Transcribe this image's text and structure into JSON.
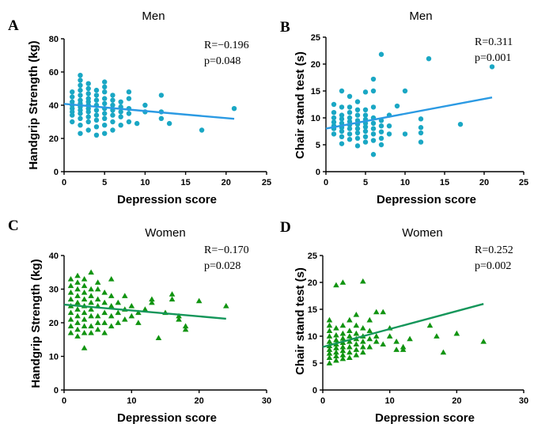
{
  "chart_data": [
    {
      "panel": "A",
      "type": "scatter",
      "title": "Men",
      "xlabel": "Depression score",
      "ylabel": "Handgrip Strength (kg)",
      "xlim": [
        0,
        25
      ],
      "ylim": [
        0,
        80
      ],
      "xticks": [
        0,
        5,
        10,
        15,
        20,
        25
      ],
      "yticks": [
        0,
        20,
        40,
        60,
        80
      ],
      "stat_r": "R=−0.196",
      "stat_p": "p=0.048",
      "marker": "circle",
      "color": "#1aa7c4",
      "line_color": "#2b9ae3",
      "trend": [
        [
          0,
          40.8
        ],
        [
          21,
          31.8
        ]
      ],
      "points": [
        [
          1,
          30
        ],
        [
          1,
          34
        ],
        [
          1,
          36
        ],
        [
          1,
          38
        ],
        [
          1,
          40
        ],
        [
          1,
          42
        ],
        [
          1,
          45
        ],
        [
          1,
          48
        ],
        [
          2,
          23
        ],
        [
          2,
          28
        ],
        [
          2,
          32
        ],
        [
          2,
          35
        ],
        [
          2,
          37
        ],
        [
          2,
          39
        ],
        [
          2,
          41
        ],
        [
          2,
          43
        ],
        [
          2,
          46
        ],
        [
          2,
          49
        ],
        [
          2,
          52
        ],
        [
          2,
          55
        ],
        [
          2,
          58
        ],
        [
          3,
          25
        ],
        [
          3,
          30
        ],
        [
          3,
          33
        ],
        [
          3,
          36
        ],
        [
          3,
          38
        ],
        [
          3,
          40
        ],
        [
          3,
          42
        ],
        [
          3,
          44
        ],
        [
          3,
          47
        ],
        [
          3,
          50
        ],
        [
          3,
          53
        ],
        [
          4,
          22
        ],
        [
          4,
          27
        ],
        [
          4,
          31
        ],
        [
          4,
          34
        ],
        [
          4,
          37
        ],
        [
          4,
          40
        ],
        [
          4,
          43
        ],
        [
          4,
          46
        ],
        [
          4,
          49
        ],
        [
          5,
          23
        ],
        [
          5,
          28
        ],
        [
          5,
          32
        ],
        [
          5,
          35
        ],
        [
          5,
          38
        ],
        [
          5,
          41
        ],
        [
          5,
          44
        ],
        [
          5,
          48
        ],
        [
          5,
          51
        ],
        [
          5,
          54
        ],
        [
          6,
          25
        ],
        [
          6,
          30
        ],
        [
          6,
          34
        ],
        [
          6,
          37
        ],
        [
          6,
          40
        ],
        [
          6,
          43
        ],
        [
          6,
          46
        ],
        [
          7,
          28
        ],
        [
          7,
          33
        ],
        [
          7,
          36
        ],
        [
          7,
          39
        ],
        [
          7,
          42
        ],
        [
          8,
          30
        ],
        [
          8,
          35
        ],
        [
          8,
          38
        ],
        [
          8,
          44
        ],
        [
          8,
          48
        ],
        [
          9,
          29
        ],
        [
          10,
          36
        ],
        [
          10,
          40
        ],
        [
          12,
          32
        ],
        [
          12,
          36
        ],
        [
          12,
          46
        ],
        [
          13,
          29
        ],
        [
          17,
          25
        ],
        [
          21,
          38
        ]
      ]
    },
    {
      "panel": "B",
      "type": "scatter",
      "title": "Men",
      "xlabel": "Depression score",
      "ylabel": "Chair stand test (s)",
      "xlim": [
        0,
        25
      ],
      "ylim": [
        0,
        25
      ],
      "xticks": [
        0,
        5,
        10,
        15,
        20,
        25
      ],
      "yticks": [
        0,
        5,
        10,
        15,
        20,
        25
      ],
      "stat_r": "R=0.311",
      "stat_p": "p=0.001",
      "marker": "circle",
      "color": "#1aa7c4",
      "line_color": "#2b9ae3",
      "trend": [
        [
          0,
          8.0
        ],
        [
          21,
          13.8
        ]
      ],
      "points": [
        [
          1,
          7
        ],
        [
          1,
          8
        ],
        [
          1,
          8.5
        ],
        [
          1,
          9.2
        ],
        [
          1,
          10
        ],
        [
          1,
          11
        ],
        [
          1,
          12.5
        ],
        [
          2,
          5.2
        ],
        [
          2,
          6.5
        ],
        [
          2,
          7.5
        ],
        [
          2,
          8.2
        ],
        [
          2,
          9
        ],
        [
          2,
          9.8
        ],
        [
          2,
          10.5
        ],
        [
          2,
          12
        ],
        [
          2,
          15
        ],
        [
          3,
          6
        ],
        [
          3,
          7
        ],
        [
          3,
          8
        ],
        [
          3,
          8.7
        ],
        [
          3,
          9.3
        ],
        [
          3,
          10
        ],
        [
          3,
          11
        ],
        [
          3,
          12
        ],
        [
          3,
          14
        ],
        [
          4,
          4.8
        ],
        [
          4,
          6.2
        ],
        [
          4,
          7.2
        ],
        [
          4,
          8
        ],
        [
          4,
          8.8
        ],
        [
          4,
          9.5
        ],
        [
          4,
          10.5
        ],
        [
          4,
          11.5
        ],
        [
          4,
          13
        ],
        [
          5,
          5.5
        ],
        [
          5,
          6.5
        ],
        [
          5,
          7.5
        ],
        [
          5,
          8.3
        ],
        [
          5,
          9
        ],
        [
          5,
          9.7
        ],
        [
          5,
          10.5
        ],
        [
          5,
          11.5
        ],
        [
          5,
          14.8
        ],
        [
          6,
          3.2
        ],
        [
          6,
          5.8
        ],
        [
          6,
          7
        ],
        [
          6,
          8
        ],
        [
          6,
          9
        ],
        [
          6,
          10
        ],
        [
          6,
          12
        ],
        [
          6,
          15
        ],
        [
          6,
          17.2
        ],
        [
          7,
          5
        ],
        [
          7,
          6.2
        ],
        [
          7,
          7.4
        ],
        [
          7,
          8.5
        ],
        [
          7,
          9.5
        ],
        [
          7,
          21.8
        ],
        [
          8,
          7
        ],
        [
          8,
          8.5
        ],
        [
          8,
          10.5
        ],
        [
          9,
          12.2
        ],
        [
          10,
          7
        ],
        [
          10,
          15
        ],
        [
          12,
          5.5
        ],
        [
          12,
          7.2
        ],
        [
          12,
          8.2
        ],
        [
          12,
          9.8
        ],
        [
          13,
          21
        ],
        [
          17,
          8.8
        ],
        [
          21,
          19.5
        ]
      ]
    },
    {
      "panel": "C",
      "type": "scatter",
      "title": "Women",
      "xlabel": "Depression score",
      "ylabel": "Handgrip Strength (kg)",
      "xlim": [
        0,
        30
      ],
      "ylim": [
        0,
        40
      ],
      "xticks": [
        0,
        10,
        20,
        30
      ],
      "yticks": [
        0,
        10,
        20,
        30,
        40
      ],
      "stat_r": "R=−0.170",
      "stat_p": "p=0.028",
      "marker": "triangle",
      "color": "#119411",
      "line_color": "#14965a",
      "trend": [
        [
          0,
          25.4
        ],
        [
          24,
          21.2
        ]
      ],
      "points": [
        [
          1,
          17
        ],
        [
          1,
          19
        ],
        [
          1,
          21
        ],
        [
          1,
          23
        ],
        [
          1,
          25
        ],
        [
          1,
          27
        ],
        [
          1,
          29
        ],
        [
          1,
          31
        ],
        [
          1,
          33
        ],
        [
          2,
          16
        ],
        [
          2,
          18
        ],
        [
          2,
          20
        ],
        [
          2,
          22
        ],
        [
          2,
          24
        ],
        [
          2,
          26
        ],
        [
          2,
          28
        ],
        [
          2,
          30
        ],
        [
          2,
          32
        ],
        [
          2,
          34
        ],
        [
          3,
          12.5
        ],
        [
          3,
          17
        ],
        [
          3,
          19
        ],
        [
          3,
          21
        ],
        [
          3,
          23
        ],
        [
          3,
          25
        ],
        [
          3,
          27
        ],
        [
          3,
          29
        ],
        [
          3,
          31
        ],
        [
          3,
          33
        ],
        [
          4,
          17
        ],
        [
          4,
          19
        ],
        [
          4,
          22
        ],
        [
          4,
          24
        ],
        [
          4,
          26
        ],
        [
          4,
          28
        ],
        [
          4,
          30
        ],
        [
          4,
          35
        ],
        [
          5,
          18
        ],
        [
          5,
          20
        ],
        [
          5,
          22
        ],
        [
          5,
          25
        ],
        [
          5,
          27
        ],
        [
          5,
          30
        ],
        [
          5,
          32
        ],
        [
          6,
          17
        ],
        [
          6,
          20
        ],
        [
          6,
          23
        ],
        [
          6,
          26
        ],
        [
          6,
          29
        ],
        [
          7,
          19
        ],
        [
          7,
          22
        ],
        [
          7,
          25
        ],
        [
          7,
          28
        ],
        [
          7,
          33
        ],
        [
          8,
          20
        ],
        [
          8,
          23
        ],
        [
          8,
          26
        ],
        [
          9,
          21
        ],
        [
          9,
          24
        ],
        [
          9,
          28
        ],
        [
          10,
          22
        ],
        [
          10,
          25
        ],
        [
          11,
          20
        ],
        [
          11,
          23
        ],
        [
          12,
          24
        ],
        [
          13,
          26
        ],
        [
          13,
          27
        ],
        [
          14,
          15.5
        ],
        [
          15,
          23
        ],
        [
          16,
          27
        ],
        [
          16,
          28.5
        ],
        [
          17,
          21
        ],
        [
          17,
          22
        ],
        [
          18,
          18
        ],
        [
          18,
          19
        ],
        [
          20,
          26.5
        ],
        [
          24,
          25
        ]
      ]
    },
    {
      "panel": "D",
      "type": "scatter",
      "title": "Women",
      "xlabel": "Depression score",
      "ylabel": "Chair stand test (s)",
      "xlim": [
        0,
        30
      ],
      "ylim": [
        0,
        25
      ],
      "xticks": [
        0,
        10,
        20,
        30
      ],
      "yticks": [
        0,
        5,
        10,
        15,
        20,
        25
      ],
      "stat_r": "R=0.252",
      "stat_p": "p=0.002",
      "marker": "triangle",
      "color": "#119411",
      "line_color": "#14965a",
      "trend": [
        [
          0,
          8.0
        ],
        [
          24,
          16.0
        ]
      ],
      "points": [
        [
          1,
          5
        ],
        [
          1,
          6
        ],
        [
          1,
          6.8
        ],
        [
          1,
          7.5
        ],
        [
          1,
          8.2
        ],
        [
          1,
          9
        ],
        [
          1,
          10
        ],
        [
          1,
          11
        ],
        [
          1,
          12
        ],
        [
          1,
          13
        ],
        [
          2,
          5.5
        ],
        [
          2,
          6.3
        ],
        [
          2,
          7
        ],
        [
          2,
          7.8
        ],
        [
          2,
          8.5
        ],
        [
          2,
          9.3
        ],
        [
          2,
          10.2
        ],
        [
          2,
          11.5
        ],
        [
          2,
          19.5
        ],
        [
          3,
          5.8
        ],
        [
          3,
          6.5
        ],
        [
          3,
          7.3
        ],
        [
          3,
          8
        ],
        [
          3,
          8.8
        ],
        [
          3,
          9.6
        ],
        [
          3,
          10.5
        ],
        [
          3,
          12
        ],
        [
          3,
          20
        ],
        [
          4,
          6
        ],
        [
          4,
          7
        ],
        [
          4,
          8
        ],
        [
          4,
          9
        ],
        [
          4,
          10
        ],
        [
          4,
          11
        ],
        [
          4,
          13
        ],
        [
          5,
          6.5
        ],
        [
          5,
          7.5
        ],
        [
          5,
          8.5
        ],
        [
          5,
          9.5
        ],
        [
          5,
          10.5
        ],
        [
          5,
          12
        ],
        [
          5,
          14
        ],
        [
          6,
          7
        ],
        [
          6,
          8
        ],
        [
          6,
          9
        ],
        [
          6,
          10
        ],
        [
          6,
          11.5
        ],
        [
          6,
          20.2
        ],
        [
          7,
          8
        ],
        [
          7,
          9.5
        ],
        [
          7,
          11
        ],
        [
          7,
          13
        ],
        [
          8,
          9
        ],
        [
          8,
          10
        ],
        [
          8,
          14.5
        ],
        [
          9,
          8.5
        ],
        [
          9,
          14.5
        ],
        [
          10,
          10
        ],
        [
          10,
          11.5
        ],
        [
          11,
          7.5
        ],
        [
          11,
          9
        ],
        [
          12,
          8
        ],
        [
          12,
          7.5
        ],
        [
          13,
          9.5
        ],
        [
          16,
          12
        ],
        [
          17,
          10
        ],
        [
          18,
          7
        ],
        [
          20,
          10.5
        ],
        [
          24,
          9
        ]
      ]
    }
  ]
}
